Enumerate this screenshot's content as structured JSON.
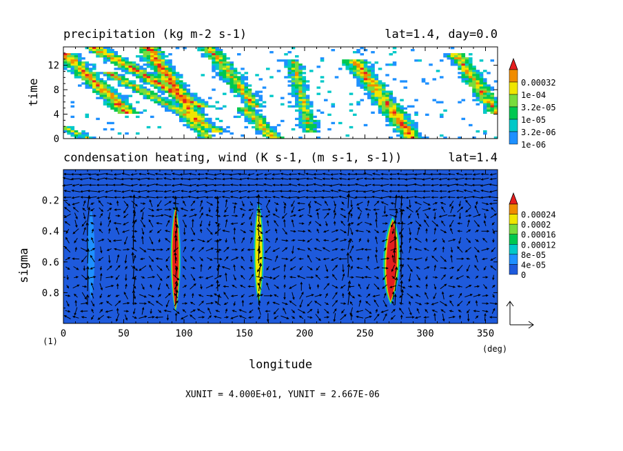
{
  "chart_data": [
    {
      "type": "heatmap",
      "title": "precipitation (kg m-2 s-1)",
      "subtitle": "lat=1.4, day=0.0",
      "ylabel": "time",
      "xlim": [
        0,
        360
      ],
      "ylim": [
        0,
        15
      ],
      "yticks": [
        0,
        4,
        8,
        12
      ],
      "colorbar": {
        "labels": [
          "1e-06",
          "3.2e-06",
          "1e-05",
          "3.2e-05",
          "1e-04",
          "0.00032"
        ],
        "colors": [
          "#1e90ff",
          "#00c8c8",
          "#00c850",
          "#78dc3c",
          "#f0e600",
          "#f08c00",
          "#e61e1e"
        ]
      },
      "bands": [
        {
          "lon0": 0,
          "lon1": 55,
          "t0": 14,
          "t1": 4,
          "peak": 6
        },
        {
          "lon0": 25,
          "lon1": 115,
          "t0": 15,
          "t1": 5,
          "peak": 6
        },
        {
          "lon0": 35,
          "lon1": 130,
          "t0": 11,
          "t1": 1,
          "peak": 5
        },
        {
          "lon0": 70,
          "lon1": 110,
          "t0": 15,
          "t1": 3,
          "peak": 6
        },
        {
          "lon0": 120,
          "lon1": 160,
          "t0": 15,
          "t1": 5,
          "peak": 5
        },
        {
          "lon0": 150,
          "lon1": 175,
          "t0": 5,
          "t1": 0,
          "peak": 5
        },
        {
          "lon0": 190,
          "lon1": 205,
          "t0": 13,
          "t1": 1,
          "peak": 4
        },
        {
          "lon0": 240,
          "lon1": 290,
          "t0": 13,
          "t1": 0,
          "peak": 6
        },
        {
          "lon0": 325,
          "lon1": 360,
          "t0": 14,
          "t1": 4,
          "peak": 5
        },
        {
          "lon0": 0,
          "lon1": 20,
          "t0": 2,
          "t1": 0,
          "peak": 4
        },
        {
          "lon0": 100,
          "lon1": 120,
          "t0": 4,
          "t1": 0,
          "peak": 4
        }
      ]
    },
    {
      "type": "heatmap",
      "title": "condensation heating, wind (K s-1, (m s-1, s-1))",
      "subtitle": "lat=1.4",
      "xlabel": "longitude",
      "ylabel": "sigma",
      "xunit": "(deg)",
      "corner": "(1)",
      "xlim": [
        0,
        360
      ],
      "ylim": [
        1.0,
        0.0
      ],
      "xticks": [
        0,
        50,
        100,
        150,
        200,
        250,
        300,
        350
      ],
      "yticks": [
        0.2,
        0.4,
        0.6,
        0.8
      ],
      "colorbar": {
        "labels": [
          "0",
          "4e-05",
          "8e-05",
          "0.00012",
          "0.00016",
          "0.0002",
          "0.00024"
        ],
        "colors": [
          "#1e5adc",
          "#1e90ff",
          "#00c8c8",
          "#00c850",
          "#78dc3c",
          "#f0e600",
          "#f08c00",
          "#e61e1e"
        ]
      },
      "plumes": [
        {
          "lon": 23,
          "halfwidth": 2,
          "sigma0": 0.25,
          "sigma1": 0.85,
          "level": 1
        },
        {
          "lon": 93,
          "halfwidth": 3,
          "sigma0": 0.22,
          "sigma1": 0.93,
          "level": 7
        },
        {
          "lon": 162,
          "halfwidth": 3,
          "sigma0": 0.2,
          "sigma1": 0.88,
          "level": 5
        },
        {
          "lon": 273,
          "halfwidth": 5,
          "sigma0": 0.3,
          "sigma1": 0.88,
          "level": 7
        }
      ],
      "reference_vector": "XUNIT = 4.000E+01, YUNIT = 2.667E-06"
    }
  ]
}
